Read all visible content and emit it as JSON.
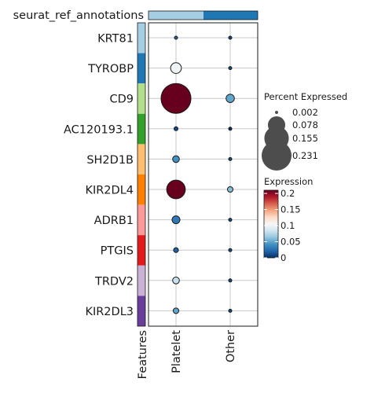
{
  "chart_data": {
    "type": "dotplot",
    "annotation_title": "seurat_ref_annotations",
    "features_label": "Features",
    "groups": [
      "Platelet",
      "Other"
    ],
    "group_colors": [
      "#a6cee3",
      "#1f78b4"
    ],
    "features": [
      "KRT81",
      "TYROBP",
      "CD9",
      "AC120193.1",
      "SH2D1B",
      "KIR2DL4",
      "ADRB1",
      "PTGIS",
      "TRDV2",
      "KIR2DL3"
    ],
    "feature_colors": [
      "#a6cee3",
      "#1f78b4",
      "#b2df8a",
      "#33a02c",
      "#fdbf6f",
      "#ff7f00",
      "#fb9a99",
      "#e31a1c",
      "#cab2d6",
      "#6a3d9a"
    ],
    "series": [
      {
        "name": "Platelet",
        "percent": [
          0.002,
          0.03,
          0.231,
          0.004,
          0.012,
          0.09,
          0.016,
          0.006,
          0.012,
          0.008
        ],
        "expression": [
          0.02,
          0.1,
          0.21,
          0.01,
          0.04,
          0.21,
          0.03,
          0.02,
          0.08,
          0.05
        ]
      },
      {
        "name": "Other",
        "percent": [
          0.001,
          0.002,
          0.018,
          0.001,
          0.002,
          0.008,
          0.002,
          0.001,
          0.002,
          0.002
        ],
        "expression": [
          0.01,
          0.01,
          0.05,
          0.0,
          0.01,
          0.06,
          0.01,
          0.01,
          0.01,
          0.01
        ]
      }
    ],
    "size_legend": {
      "title": "Percent Expressed",
      "breaks": [
        0.002,
        0.078,
        0.155,
        0.231
      ],
      "labels": [
        "0.002",
        "0.078",
        "0.155",
        "0.231"
      ]
    },
    "color_legend": {
      "title": "Expression",
      "range": [
        0,
        0.21
      ],
      "ticks": [
        0,
        0.05,
        0.1,
        0.15,
        0.2
      ],
      "tick_labels": [
        "0",
        "0.05",
        "0.1",
        "0.15",
        "0.2"
      ],
      "palette": [
        "#053061",
        "#2166ac",
        "#4393c3",
        "#92c5de",
        "#d1e5f0",
        "#f7f7f7",
        "#fddbc7",
        "#f4a582",
        "#d6604d",
        "#b2182b",
        "#67001f"
      ]
    },
    "grid": true
  }
}
